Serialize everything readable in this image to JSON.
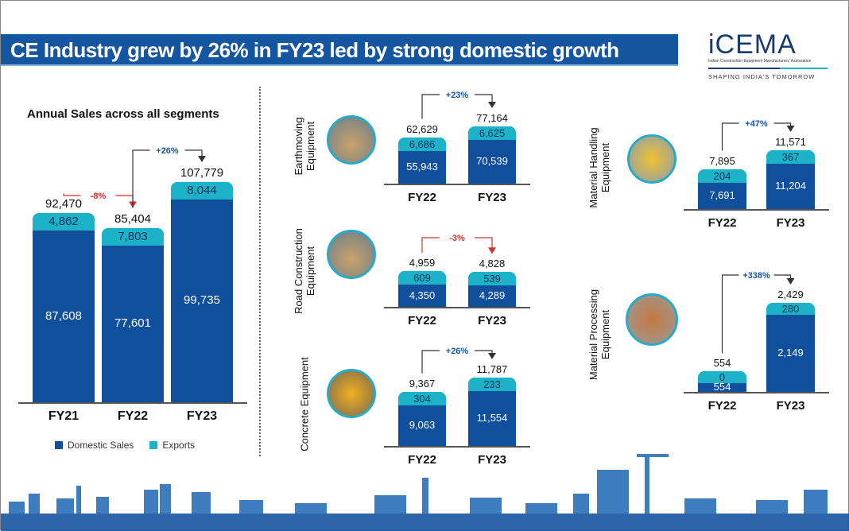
{
  "header": {
    "title": "CE Industry grew by 26% in FY23 led by strong domestic growth"
  },
  "logo": {
    "name": "iCEMA",
    "subtitle": "Indian Construction Equipment Manufacturers' Association",
    "tagline": "SHAPING INDIA'S TOMORROW"
  },
  "colors": {
    "domestic": "#0f4f9c",
    "exports": "#1cb3c9",
    "banner": "#1656a0",
    "decline": "#d0312d",
    "growth": "#1656a0"
  },
  "chart_data": [
    {
      "type": "bar",
      "stacked": true,
      "title": "Annual Sales across all segments",
      "categories": [
        "FY21",
        "FY22",
        "FY23"
      ],
      "series": [
        {
          "name": "Domestic Sales",
          "values": [
            87608,
            77601,
            99735
          ]
        },
        {
          "name": "Exports",
          "values": [
            4862,
            7803,
            8044
          ]
        }
      ],
      "totals": [
        "92,470",
        "85,404",
        "107,779"
      ],
      "domestic_labels": [
        "87,608",
        "77,601",
        "99,735"
      ],
      "export_labels": [
        "4,862",
        "7,803",
        "8,044"
      ],
      "changes": [
        {
          "from": 0,
          "to": 1,
          "label": "-8%",
          "direction": "down"
        },
        {
          "from": 1,
          "to": 2,
          "label": "+26%",
          "direction": "up"
        }
      ],
      "legend": [
        "Domestic Sales",
        "Exports"
      ],
      "legend_position": "bottom"
    },
    {
      "type": "bar",
      "stacked": true,
      "title": "Earthmoving Equipment",
      "categories": [
        "FY22",
        "FY23"
      ],
      "series": [
        {
          "name": "Domestic Sales",
          "values": [
            55943,
            70539
          ]
        },
        {
          "name": "Exports",
          "values": [
            6686,
            6625
          ]
        }
      ],
      "totals": [
        "62,629",
        "77,164"
      ],
      "domestic_labels": [
        "55,943",
        "70,539"
      ],
      "export_labels": [
        "6,686",
        "6,625"
      ],
      "changes": [
        {
          "from": 0,
          "to": 1,
          "label": "+23%",
          "direction": "up"
        }
      ]
    },
    {
      "type": "bar",
      "stacked": true,
      "title": "Road Construction Equipment",
      "categories": [
        "FY22",
        "FY23"
      ],
      "series": [
        {
          "name": "Domestic Sales",
          "values": [
            4350,
            4289
          ]
        },
        {
          "name": "Exports",
          "values": [
            609,
            539
          ]
        }
      ],
      "totals": [
        "4,959",
        "4,828"
      ],
      "domestic_labels": [
        "4,350",
        "4,289"
      ],
      "export_labels": [
        "609",
        "539"
      ],
      "changes": [
        {
          "from": 0,
          "to": 1,
          "label": "-3%",
          "direction": "down"
        }
      ]
    },
    {
      "type": "bar",
      "stacked": true,
      "title": "Concrete Equipment",
      "categories": [
        "FY22",
        "FY23"
      ],
      "series": [
        {
          "name": "Domestic Sales",
          "values": [
            9063,
            11554
          ]
        },
        {
          "name": "Exports",
          "values": [
            304,
            233
          ]
        }
      ],
      "totals": [
        "9,367",
        "11,787"
      ],
      "domestic_labels": [
        "9,063",
        "11,554"
      ],
      "export_labels": [
        "304",
        "233"
      ],
      "changes": [
        {
          "from": 0,
          "to": 1,
          "label": "+26%",
          "direction": "up"
        }
      ]
    },
    {
      "type": "bar",
      "stacked": true,
      "title": "Material Handling Equipment",
      "categories": [
        "FY22",
        "FY23"
      ],
      "series": [
        {
          "name": "Domestic Sales",
          "values": [
            7691,
            11204
          ]
        },
        {
          "name": "Exports",
          "values": [
            204,
            367
          ]
        }
      ],
      "totals": [
        "7,895",
        "11,571"
      ],
      "domestic_labels": [
        "7,691",
        "11,204"
      ],
      "export_labels": [
        "204",
        "367"
      ],
      "changes": [
        {
          "from": 0,
          "to": 1,
          "label": "+47%",
          "direction": "up"
        }
      ]
    },
    {
      "type": "bar",
      "stacked": true,
      "title": "Material Processing Equipment",
      "categories": [
        "FY22",
        "FY23"
      ],
      "series": [
        {
          "name": "Domestic Sales",
          "values": [
            554,
            2149
          ]
        },
        {
          "name": "Exports",
          "values": [
            0,
            280
          ]
        }
      ],
      "totals": [
        "554",
        "2,429"
      ],
      "domestic_labels": [
        "554",
        "2,149"
      ],
      "export_labels": [
        "0",
        "280"
      ],
      "changes": [
        {
          "from": 0,
          "to": 1,
          "label": "+338%",
          "direction": "up"
        }
      ]
    }
  ]
}
